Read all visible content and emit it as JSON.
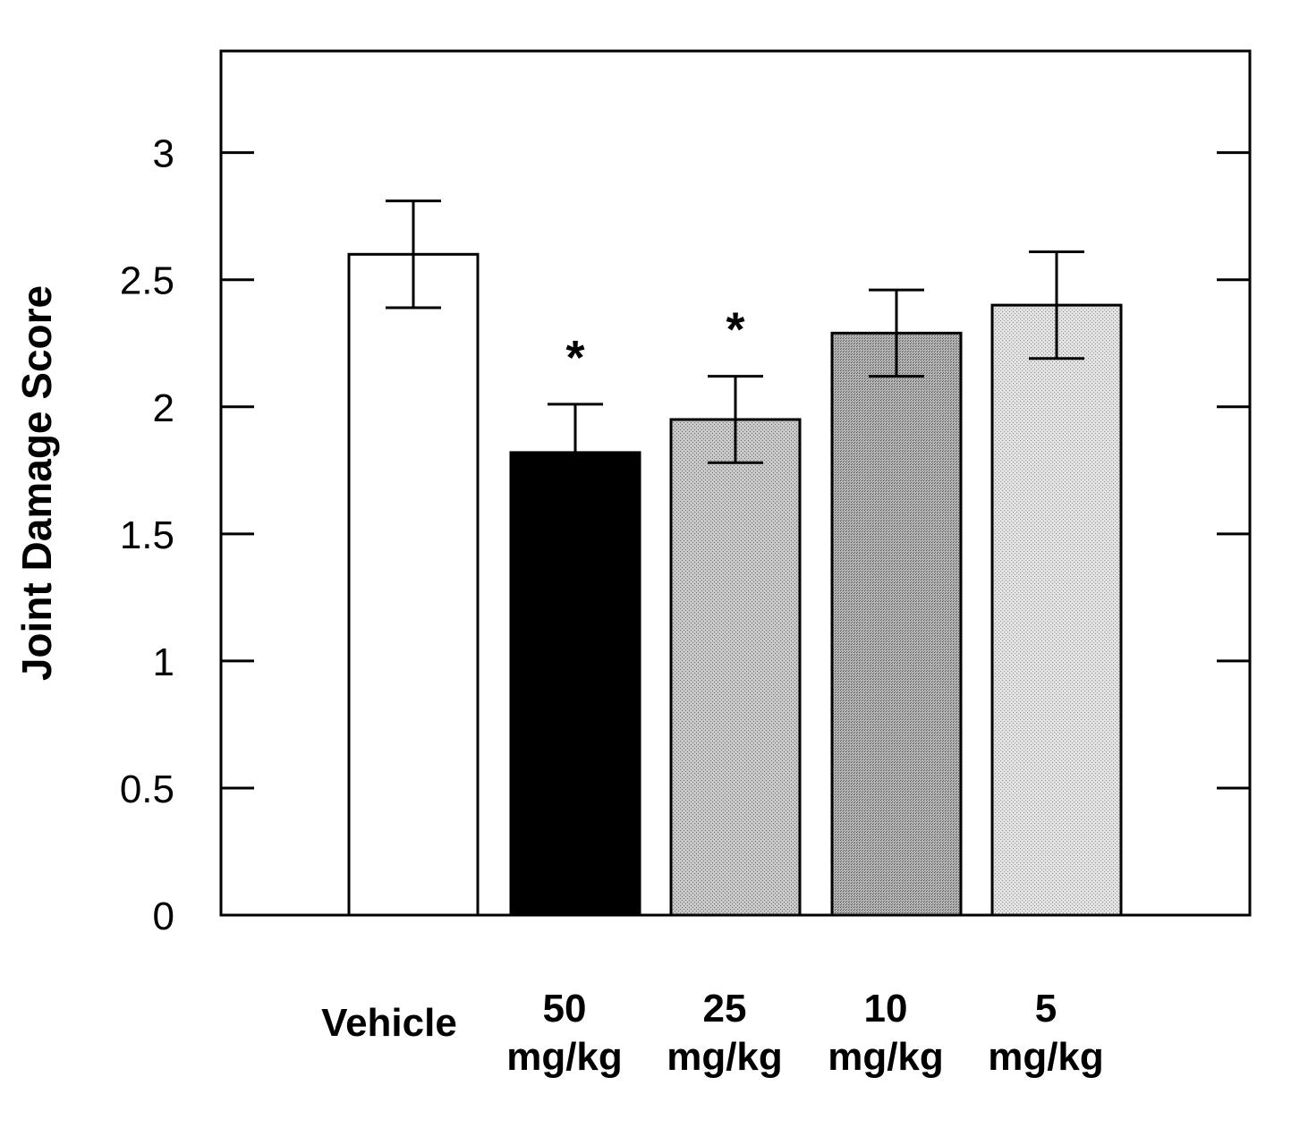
{
  "chart_data": {
    "type": "bar",
    "ylabel": "Joint Damage Score",
    "xlabel": "",
    "ylim": [
      0,
      3.4
    ],
    "yticks": [
      0,
      0.5,
      1,
      1.5,
      2,
      2.5,
      3
    ],
    "ytick_labels": [
      "0",
      "0.5",
      "1",
      "1.5",
      "2",
      "2.5",
      "3"
    ],
    "grid": false,
    "categories": [
      {
        "lines": [
          "Vehicle"
        ]
      },
      {
        "lines": [
          "50",
          "mg/kg"
        ]
      },
      {
        "lines": [
          "25",
          "mg/kg"
        ]
      },
      {
        "lines": [
          "10",
          "mg/kg"
        ]
      },
      {
        "lines": [
          "5",
          "mg/kg"
        ]
      }
    ],
    "values": [
      2.6,
      1.82,
      1.95,
      2.29,
      2.4
    ],
    "errors": [
      0.21,
      0.19,
      0.17,
      0.17,
      0.21
    ],
    "fills": [
      "#ffffff",
      "#000000",
      "#c8c8c8",
      "#a8a8a8",
      "#d8d8d8"
    ],
    "significance": [
      "",
      "*",
      "*",
      "",
      ""
    ]
  }
}
